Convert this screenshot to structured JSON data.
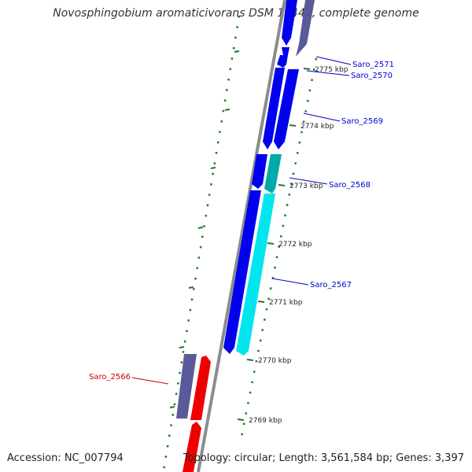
{
  "title": "Novosphingobium aromaticivorans DSM 12444, complete genome",
  "accession_text": "Accession: NC_007794",
  "summary_text": "Topology: circular; Length: 3,561,584 bp; Genes: 3,397",
  "colors": {
    "backbone": "#8c8c8c",
    "tick": "#1f7a1f",
    "forward_gene": "#0000ee",
    "forward_alt_gene": "#00e5ee",
    "reverse_gene": "#ee0000",
    "reverse_alt_gene": "#5a5a9a",
    "label_blue": "#0000cc",
    "label_red": "#cc0000"
  },
  "ticks": [
    {
      "label": "2775 kbp"
    },
    {
      "label": "2774 kbp"
    },
    {
      "label": "2773 kbp"
    },
    {
      "label": "2772 kbp"
    },
    {
      "label": "2771 kbp"
    },
    {
      "label": "2770 kbp"
    },
    {
      "label": "2769 kbp"
    }
  ],
  "genes": [
    {
      "label": "Saro_2571",
      "color_key": "label_blue"
    },
    {
      "label": "Saro_2570",
      "color_key": "label_blue"
    },
    {
      "label": "Saro_2569",
      "color_key": "label_blue"
    },
    {
      "label": "Saro_2568",
      "color_key": "label_blue"
    },
    {
      "label": "Saro_2567",
      "color_key": "label_blue"
    },
    {
      "label": "Saro_2566",
      "color_key": "label_red"
    }
  ]
}
